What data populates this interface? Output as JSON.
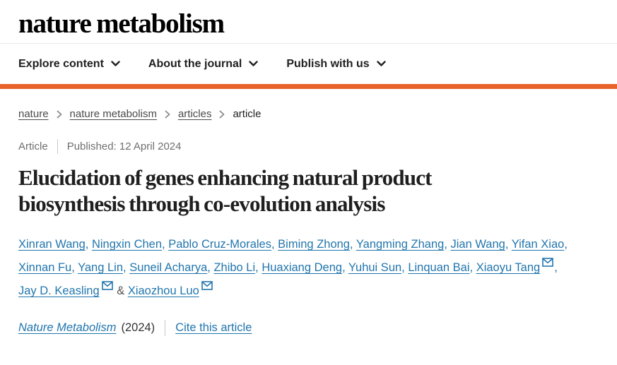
{
  "colors": {
    "accent_orange": "#e8622c",
    "link_blue": "#2276ad",
    "gray_text": "#6f6f6f"
  },
  "brand": {
    "logo": "nature metabolism"
  },
  "nav": {
    "items": [
      {
        "label": "Explore content",
        "icon": "chevron-down"
      },
      {
        "label": "About the journal",
        "icon": "chevron-down"
      },
      {
        "label": "Publish with us",
        "icon": "chevron-down"
      }
    ]
  },
  "breadcrumb": {
    "separator_icon": "chevron-right",
    "items": [
      {
        "label": "nature",
        "link": true
      },
      {
        "label": "nature metabolism",
        "link": true
      },
      {
        "label": "articles",
        "link": true
      },
      {
        "label": "article",
        "link": false
      }
    ]
  },
  "meta": {
    "type": "Article",
    "published": "Published: 12 April 2024"
  },
  "title": {
    "full": "Elucidation of genes enhancing natural product biosynthesis through co-evolution analysis",
    "lines": [
      "Elucidation of genes enhancing natural product",
      "biosynthesis through co-evolution analysis"
    ]
  },
  "authors": {
    "email_icon": "envelope",
    "comma_separator": ",",
    "and_separator": "&",
    "list": [
      {
        "name": "Xinran Wang",
        "email": false
      },
      {
        "name": "Ningxin Chen",
        "email": false
      },
      {
        "name": "Pablo Cruz-Morales",
        "email": false
      },
      {
        "name": "Biming Zhong",
        "email": false
      },
      {
        "name": "Yangming Zhang",
        "email": false
      },
      {
        "name": "Jian Wang",
        "email": false
      },
      {
        "name": "Yifan Xiao",
        "email": false
      },
      {
        "name": "Xinnan Fu",
        "email": false
      },
      {
        "name": "Yang Lin",
        "email": false
      },
      {
        "name": "Suneil Acharya",
        "email": false
      },
      {
        "name": "Zhibo Li",
        "email": false
      },
      {
        "name": "Huaxiang Deng",
        "email": false
      },
      {
        "name": "Yuhui Sun",
        "email": false
      },
      {
        "name": "Linquan Bai",
        "email": false
      },
      {
        "name": "Xiaoyu Tang",
        "email": true
      },
      {
        "name": "Jay D. Keasling",
        "email": true
      },
      {
        "name": "Xiaozhou Luo",
        "email": true
      }
    ]
  },
  "citation": {
    "journal": "Nature Metabolism",
    "year": "(2024)",
    "cite_label": "Cite this article"
  }
}
